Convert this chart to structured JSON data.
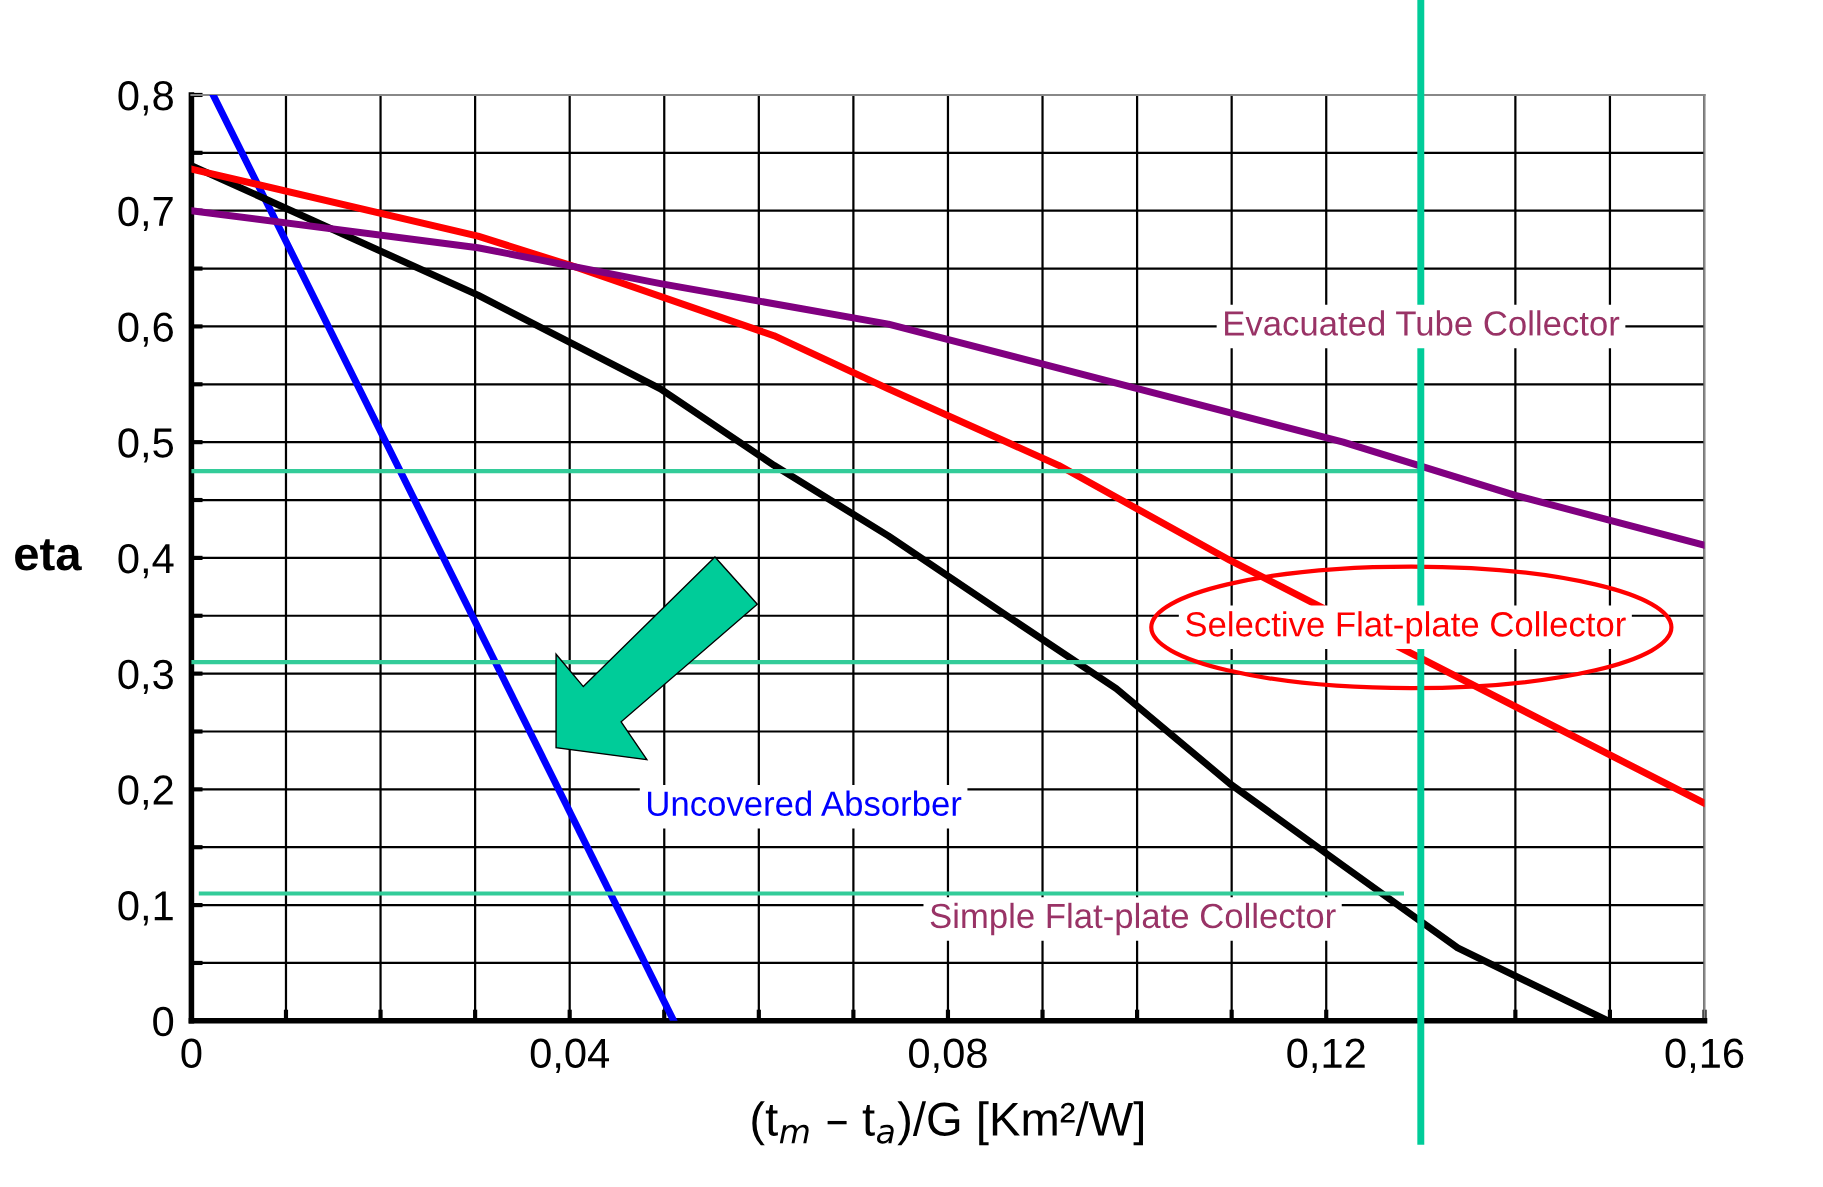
{
  "chart_data": {
    "type": "line",
    "xlabel": "(t$_{m}$ – t$_{a}$)/G [Km²/W]",
    "ylabel": "eta",
    "xlim": [
      0,
      0.16
    ],
    "ylim": [
      0,
      0.8
    ],
    "xticks": [
      0,
      {
        "value": 0.01,
        "label": null
      },
      {
        "value": 0.02,
        "label": null
      },
      {
        "value": 0.03,
        "label": null
      },
      {
        "value": 0.04,
        "label": "0,04"
      },
      {
        "value": 0.05,
        "label": null
      },
      {
        "value": 0.06,
        "label": null
      },
      {
        "value": 0.07,
        "label": null
      },
      {
        "value": 0.08,
        "label": "0,08"
      },
      {
        "value": 0.09,
        "label": null
      },
      {
        "value": 0.1,
        "label": null
      },
      {
        "value": 0.11,
        "label": null
      },
      {
        "value": 0.12,
        "label": "0,12"
      },
      {
        "value": 0.13,
        "label": null
      },
      {
        "value": 0.14,
        "label": null
      },
      {
        "value": 0.15,
        "label": null
      },
      {
        "value": 0.16,
        "label": "0,16"
      }
    ],
    "yticks": [
      0,
      {
        "value": 0.05,
        "label": null
      },
      {
        "value": 0.1,
        "label": "0,1"
      },
      {
        "value": 0.15,
        "label": null
      },
      {
        "value": 0.2,
        "label": "0,2"
      },
      {
        "value": 0.25,
        "label": null
      },
      {
        "value": 0.3,
        "label": "0,3"
      },
      {
        "value": 0.35,
        "label": null
      },
      {
        "value": 0.4,
        "label": "0,4"
      },
      {
        "value": 0.45,
        "label": null
      },
      {
        "value": 0.5,
        "label": "0,5"
      },
      {
        "value": 0.55,
        "label": null
      },
      {
        "value": 0.6,
        "label": "0,6"
      },
      {
        "value": 0.65,
        "label": null
      },
      {
        "value": 0.7,
        "label": "0,7"
      },
      {
        "value": 0.75,
        "label": null
      },
      {
        "value": 0.8,
        "label": "0,8"
      }
    ],
    "grid": true,
    "legend": false,
    "series": [
      {
        "name": "Uncovered Absorber",
        "color": "#0000ff",
        "x": [
          0.0023,
          0.051
        ],
        "values": [
          0.8,
          0
        ]
      },
      {
        "name": "Simple Flat-plate Collector",
        "color": "#000000",
        "x": [
          0,
          0.0303,
          0.0496,
          0.0616,
          0.0737,
          0.0857,
          0.0978,
          0.1098,
          0.1218,
          0.1339,
          0.1498
        ],
        "values": [
          0.739,
          0.627,
          0.546,
          0.48,
          0.419,
          0.353,
          0.287,
          0.205,
          0.134,
          0.063,
          0
        ]
      },
      {
        "name": "Selective Flat-plate Collector",
        "color": "#ff0000",
        "x": [
          0,
          0.0303,
          0.04,
          0.0616,
          0.0737,
          0.0917,
          0.1098,
          0.1339,
          0.16
        ],
        "values": [
          0.736,
          0.678,
          0.653,
          0.592,
          0.546,
          0.48,
          0.398,
          0.297,
          0.188
        ]
      },
      {
        "name": "Evacuated Tube Collector",
        "color": "#800080",
        "x": [
          0,
          0.0303,
          0.0496,
          0.0737,
          0.0978,
          0.1218,
          0.14,
          0.16
        ],
        "values": [
          0.7,
          0.668,
          0.637,
          0.602,
          0.551,
          0.5,
          0.454,
          0.411
        ]
      },
      {
        "color": "#33cc99",
        "x": [
          0.13,
          0
        ],
        "values": [
          0.475,
          0.475
        ]
      },
      {
        "color": "#33cc99",
        "x": [
          0.13,
          0
        ],
        "values": [
          0.31,
          0.31
        ]
      },
      {
        "color": "#33cc99",
        "x": [
          0.128,
          0.001
        ],
        "values": [
          0.11,
          0.11
        ]
      }
    ],
    "ref_lines": [
      {
        "axis": "x",
        "value": 0.13,
        "color": "#00cc99"
      }
    ]
  }
}
